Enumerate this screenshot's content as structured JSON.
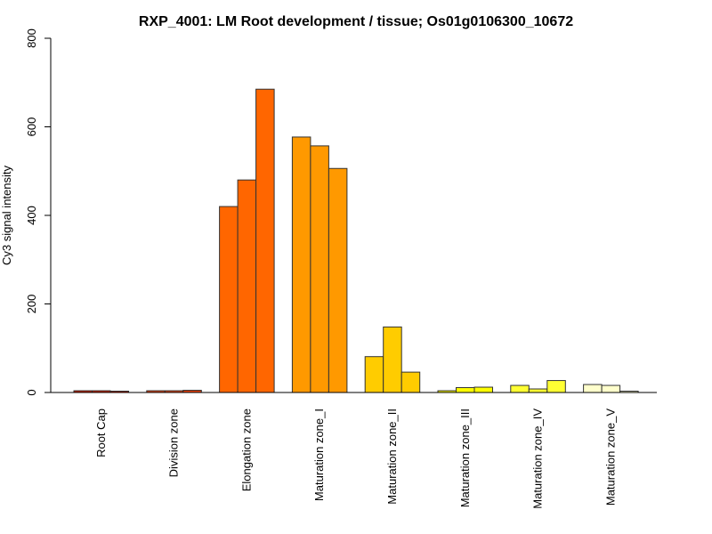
{
  "chart_data": {
    "type": "bar",
    "title": "RXP_4001: LM Root development / tissue; Os01g0106300_10672",
    "xlabel": "",
    "ylabel": "Cy3 signal intensity",
    "ylim": [
      0,
      800
    ],
    "yticks": [
      "0",
      "200",
      "400",
      "600",
      "800"
    ],
    "ytick_values": [
      0,
      200,
      400,
      600,
      800
    ],
    "grid": false,
    "legend": "none",
    "categories": [
      "Root Cap",
      "Division zone",
      "Elongation zone",
      "Maturation zone_I",
      "Maturation zone_II",
      "Maturation zone_III",
      "Maturation zone_IV",
      "Maturation zone_V"
    ],
    "colors": [
      "#CC1A00",
      "#E8420F",
      "#FF6600",
      "#FF9900",
      "#FFCC00",
      "#FFFF00",
      "#FFFF33",
      "#FFFFCC"
    ],
    "replicates": [
      [
        4,
        4,
        3
      ],
      [
        4,
        4,
        5
      ],
      [
        420,
        480,
        685
      ],
      [
        577,
        557,
        506
      ],
      [
        81,
        148,
        46
      ],
      [
        4,
        11,
        12
      ],
      [
        16,
        8,
        27
      ],
      [
        18,
        16,
        3
      ]
    ]
  }
}
